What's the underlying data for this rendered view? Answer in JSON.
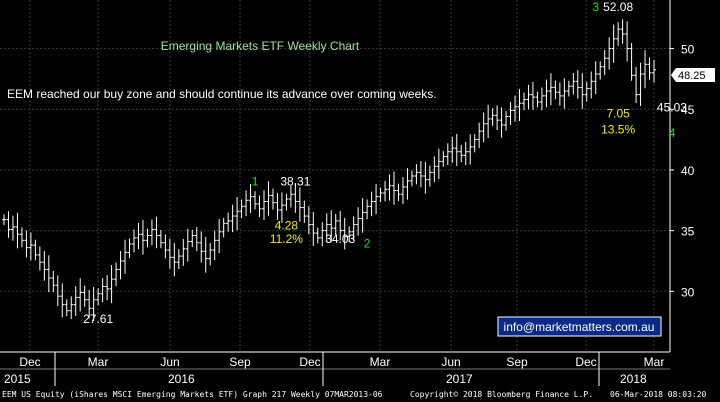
{
  "chart_data": {
    "type": "ohlc",
    "title": "Emerging Markets ETF Weekly Chart",
    "subtitle": "EEM reached our buy zone and should continue its advance over coming weeks.",
    "ylim": [
      25,
      54
    ],
    "yticks": [
      30,
      35,
      40,
      45,
      50
    ],
    "last_price": "48.25",
    "x_months": [
      "Dec",
      "Mar",
      "Jun",
      "Sep",
      "Dec",
      "Mar",
      "Jun",
      "Sep",
      "Dec",
      "Mar"
    ],
    "x_years": [
      "2015",
      "2016",
      "2017",
      "2018"
    ],
    "weekly_close": [
      35.9,
      35.1,
      35.3,
      34.7,
      34.2,
      33.6,
      33.8,
      33.0,
      32.4,
      31.8,
      31.1,
      30.5,
      29.6,
      28.9,
      28.4,
      28.9,
      29.5,
      29.9,
      29.3,
      28.6,
      29.3,
      29.8,
      30.4,
      30.2,
      31.0,
      31.8,
      32.5,
      33.2,
      33.9,
      34.4,
      34.7,
      34.2,
      34.6,
      35.1,
      34.6,
      34.0,
      33.4,
      32.8,
      32.4,
      32.9,
      33.5,
      34.1,
      34.6,
      34.0,
      33.3,
      32.7,
      33.4,
      34.2,
      34.9,
      35.6,
      35.8,
      36.2,
      36.6,
      37.0,
      37.5,
      37.8,
      37.2,
      36.8,
      37.4,
      37.9,
      37.3,
      36.7,
      37.1,
      37.6,
      38.0,
      37.4,
      36.9,
      36.2,
      35.5,
      34.8,
      34.4,
      35.0,
      35.5,
      35.2,
      35.8,
      35.0,
      34.5,
      34.9,
      35.5,
      36.0,
      36.5,
      37.0,
      37.4,
      37.8,
      38.1,
      38.4,
      38.7,
      38.3,
      38.0,
      38.6,
      39.1,
      39.5,
      39.8,
      39.5,
      39.2,
      39.8,
      40.3,
      40.7,
      41.1,
      41.5,
      41.8,
      41.5,
      41.2,
      41.5,
      41.9,
      42.5,
      43.2,
      43.8,
      44.2,
      44.5,
      44.1,
      43.7,
      44.4,
      44.9,
      45.2,
      45.5,
      45.8,
      46.2,
      46.0,
      45.6,
      46.1,
      46.5,
      46.8,
      46.4,
      46.1,
      46.5,
      46.9,
      47.3,
      46.8,
      46.2,
      46.7,
      47.3,
      47.9,
      48.5,
      49.2,
      50.0,
      50.8,
      51.6,
      51.2,
      50.0,
      47.8,
      46.2,
      47.9,
      48.7,
      48.0,
      48.25
    ],
    "annotations": [
      {
        "text": "3",
        "x_week": 132,
        "y": 53.1,
        "color": "#22dd22"
      },
      {
        "text": "52.08",
        "x_week": 137,
        "y": 53.1,
        "color": "#ffffff"
      },
      {
        "text": "1",
        "x_week": 56,
        "y": 38.7,
        "color": "#22dd22"
      },
      {
        "text": "38.31",
        "x_week": 65,
        "y": 38.7,
        "color": "#ffffff"
      },
      {
        "text": "4.28",
        "x_week": 63,
        "y": 35.1,
        "color": "#f0f000"
      },
      {
        "text": "11.2%",
        "x_week": 63,
        "y": 34.0,
        "color": "#f0f000"
      },
      {
        "text": "34.03",
        "x_week": 75,
        "y": 34.0,
        "color": "#ffffff"
      },
      {
        "text": "2",
        "x_week": 81,
        "y": 33.6,
        "color": "#22dd22"
      },
      {
        "text": "27.61",
        "x_week": 21,
        "y": 27.4,
        "color": "#ffffff"
      },
      {
        "text": "7.05",
        "x_week": 137,
        "y": 44.3,
        "color": "#f0f000"
      },
      {
        "text": "13.5%",
        "x_week": 137,
        "y": 43.0,
        "color": "#f0f000"
      },
      {
        "text": "45.03",
        "x_week": 149,
        "y": 44.8,
        "color": "#ffffff"
      },
      {
        "text": "4",
        "x_week": 149,
        "y": 42.7,
        "color": "#22dd22"
      }
    ],
    "email": "info@marketmatters.com.au",
    "colors": {
      "bars": "#ffffff",
      "grid": "#3a3a3a",
      "title": "#9de39d",
      "highlight": "#f0f000",
      "label": "#22dd22"
    }
  },
  "footer": {
    "left": "EEM US Equity (iShares MSCI Emerging Markets ETF) Graph 217  Weekly 07MAR2013-06",
    "center": "Copyright© 2018 Bloomberg Finance L.P.",
    "right": "06-Mar-2018 08:03:20"
  }
}
